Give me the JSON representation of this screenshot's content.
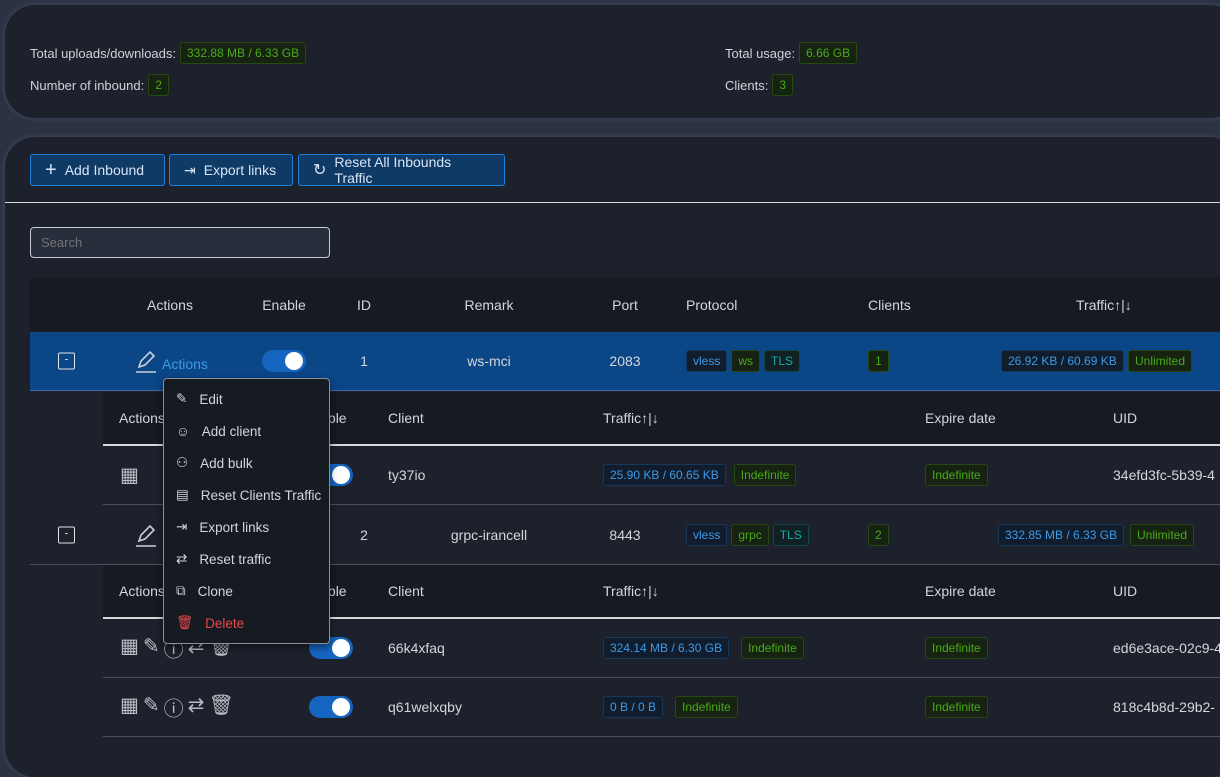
{
  "stats": {
    "total_updown_label": "Total uploads/downloads:",
    "total_updown": "332.88 MB / 6.33 GB",
    "inbound_count_label": "Number of inbound:",
    "inbound_count": "2",
    "total_usage_label": "Total usage:",
    "total_usage": "6.66 GB",
    "clients_label": "Clients:",
    "clients": "3"
  },
  "toolbar": {
    "add": "Add Inbound",
    "export": "Export links",
    "reset": "Reset All Inbounds Traffic"
  },
  "search": {
    "placeholder": "Search"
  },
  "columns": {
    "actions": "Actions",
    "enable": "Enable",
    "id": "ID",
    "remark": "Remark",
    "port": "Port",
    "protocol": "Protocol",
    "clients": "Clients",
    "traffic": "Traffic↑|↓"
  },
  "subcolumns": {
    "actions": "Actions",
    "enable": "Enable",
    "client": "Client",
    "traffic": "Traffic↑|↓",
    "expire": "Expire date",
    "uid": "UID"
  },
  "inbounds": [
    {
      "actions_label": "Actions",
      "enabled": true,
      "id": "1",
      "remark": "ws-mci",
      "port": "2083",
      "protocol": [
        "vless",
        "ws",
        "TLS"
      ],
      "clients": "1",
      "traffic": "26.92 KB / 60.69 KB",
      "limit": "Unlimited",
      "client_rows": [
        {
          "enabled": true,
          "client": "ty37io",
          "traffic": "25.90 KB / 60.65 KB",
          "total": "Indefinite",
          "expire": "Indefinite",
          "uid": "34efd3fc-5b39-4"
        }
      ]
    },
    {
      "enabled": true,
      "id": "2",
      "remark": "grpc-irancell",
      "port": "8443",
      "protocol": [
        "vless",
        "grpc",
        "TLS"
      ],
      "clients": "2",
      "traffic": "332.85 MB / 6.33 GB",
      "limit": "Unlimited",
      "client_rows": [
        {
          "enabled": true,
          "client": "66k4xfaq",
          "traffic": "324.14 MB / 6.30 GB",
          "total": "Indefinite",
          "expire": "Indefinite",
          "uid": "ed6e3ace-02c9-4"
        },
        {
          "enabled": true,
          "client": "q61welxqby",
          "traffic": "0 B / 0 B",
          "total": "Indefinite",
          "expire": "Indefinite",
          "uid": "818c4b8d-29b2-"
        }
      ]
    }
  ],
  "menu": [
    "Edit",
    "Add client",
    "Add bulk",
    "Reset Clients Traffic",
    "Export links",
    "Reset traffic",
    "Clone",
    "Delete"
  ],
  "colors": {
    "accent": "#1f7fe0",
    "selected_row": "#0b4687",
    "delete": "#e8484a"
  }
}
